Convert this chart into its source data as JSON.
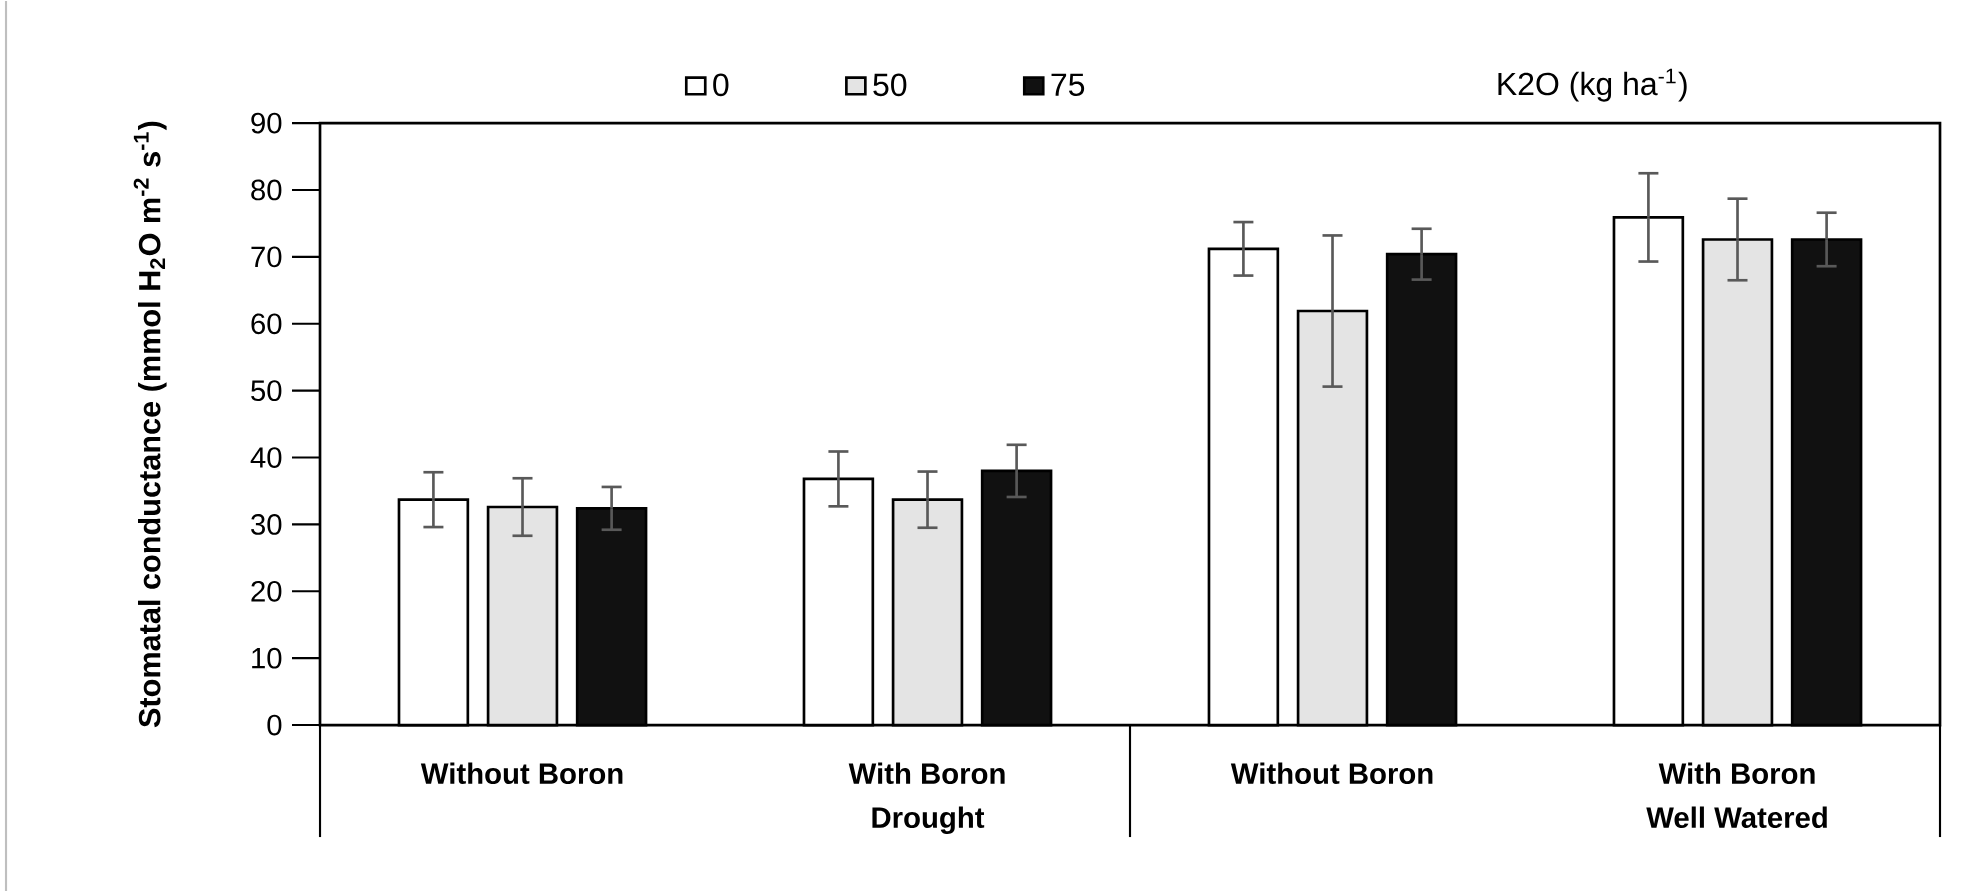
{
  "chart_data": {
    "type": "bar",
    "ylabel": "Stomatal conductance (mmol H$_{2}$O m$^{-2}$ s$^{-1}$)",
    "legend_title": "K2O (kg ha$^{-1}$)",
    "categories": [
      "Without Boron",
      "With Boron",
      "Without Boron",
      "With Boron"
    ],
    "annotations": [
      "Drought",
      "Well Watered"
    ],
    "series": [
      {
        "name": "0",
        "color": "#ffffff",
        "values": [
          33.7,
          36.8,
          71.2,
          75.9
        ],
        "errors": [
          4.1,
          4.1,
          4.0,
          6.6
        ]
      },
      {
        "name": "50",
        "color": "#e4e4e4",
        "values": [
          32.6,
          33.7,
          61.9,
          72.6
        ],
        "errors": [
          4.3,
          4.2,
          11.3,
          6.1
        ]
      },
      {
        "name": "75",
        "color": "#111111",
        "values": [
          32.4,
          38.0,
          70.4,
          72.6
        ],
        "errors": [
          3.2,
          3.9,
          3.8,
          4.0
        ]
      }
    ],
    "ylim": [
      0,
      90
    ],
    "yticks": [
      0,
      10,
      20,
      30,
      40,
      50,
      60,
      70,
      80,
      90
    ],
    "grid": false,
    "legend": "top"
  }
}
